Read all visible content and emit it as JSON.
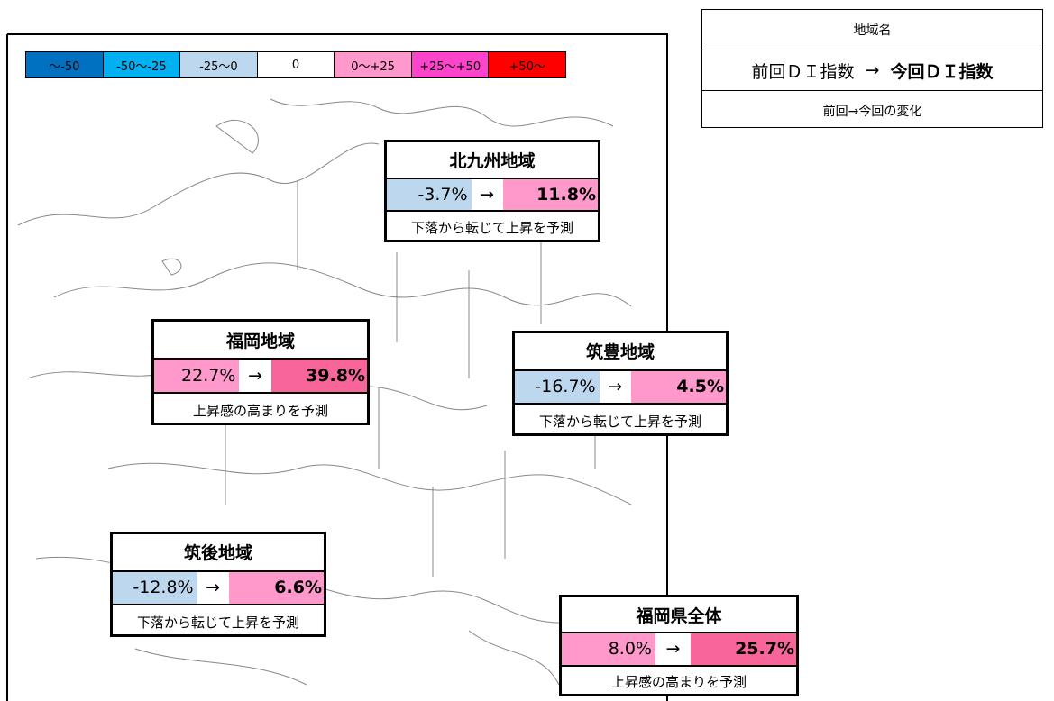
{
  "legend": [
    {
      "label": "～-50",
      "color": "#0070c0"
    },
    {
      "label": "-50～-25",
      "color": "#00b0f0"
    },
    {
      "label": "-25～0",
      "color": "#bdd7ee"
    },
    {
      "label": "0",
      "color": "#ffffff"
    },
    {
      "label": "0～+25",
      "color": "#ff99cc"
    },
    {
      "label": "+25～+50",
      "color": "#ff44cc"
    },
    {
      "label": "+50～",
      "color": "#ff0000"
    }
  ],
  "key": {
    "title": "地域名",
    "previous": "前回ＤＩ指数",
    "arrow": "→",
    "current": "今回ＤＩ指数",
    "change": "前回→今回の変化"
  },
  "regions": [
    {
      "name": "北九州地域",
      "previous": "-3.7%",
      "current": "11.8%",
      "change": "下落から転じて上昇を予測",
      "previous_color": "#bdd7ee",
      "current_color": "#ff99cc"
    },
    {
      "name": "福岡地域",
      "previous": "22.7%",
      "current": "39.8%",
      "change": "上昇感の高まりを予測",
      "previous_color": "#ff99cc",
      "current_color": "#f7659a"
    },
    {
      "name": "筑豊地域",
      "previous": "-16.7%",
      "current": "4.5%",
      "change": "下落から転じて上昇を予測",
      "previous_color": "#bdd7ee",
      "current_color": "#ff99cc"
    },
    {
      "name": "筑後地域",
      "previous": "-12.8%",
      "current": "6.6%",
      "change": "下落から転じて上昇を予測",
      "previous_color": "#bdd7ee",
      "current_color": "#ff99cc"
    },
    {
      "name": "福岡県全体",
      "previous": "8.0%",
      "current": "25.7%",
      "change": "上昇感の高まりを予測",
      "previous_color": "#ff99cc",
      "current_color": "#f7659a"
    }
  ]
}
